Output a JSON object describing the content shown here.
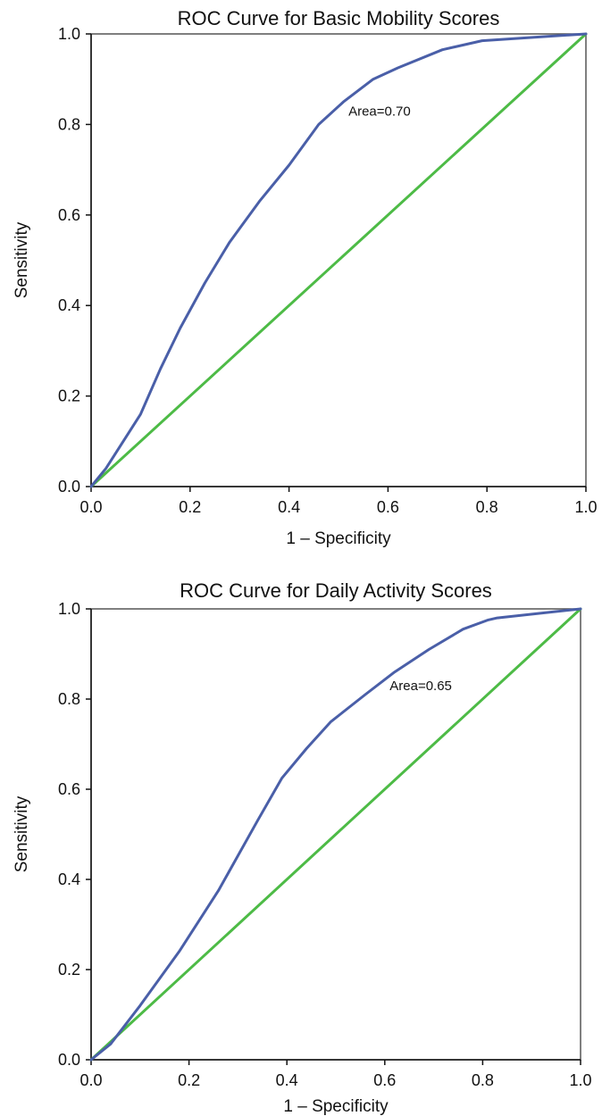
{
  "chart_data": [
    {
      "type": "line",
      "title": "ROC Curve for Basic Mobility Scores",
      "xlabel": "1 – Specificity",
      "ylabel": "Sensitivity",
      "xlim": [
        0,
        1
      ],
      "ylim": [
        0,
        1
      ],
      "xticks": [
        "0.0",
        "0.2",
        "0.4",
        "0.6",
        "0.8",
        "1.0"
      ],
      "yticks": [
        "0.0",
        "0.2",
        "0.4",
        "0.6",
        "0.8",
        "1.0"
      ],
      "grid": false,
      "annotation": {
        "text": "Area=0.70",
        "x": 0.52,
        "y": 0.82
      },
      "series": [
        {
          "color": "#4a5fa8",
          "x": [
            0,
            0.03,
            0.1,
            0.14,
            0.18,
            0.23,
            0.28,
            0.34,
            0.4,
            0.46,
            0.51,
            0.57,
            0.62,
            0.71,
            0.79,
            1.0
          ],
          "y": [
            0,
            0.04,
            0.16,
            0.26,
            0.35,
            0.45,
            0.54,
            0.63,
            0.71,
            0.8,
            0.85,
            0.9,
            0.925,
            0.965,
            0.985,
            1.0
          ]
        },
        {
          "color": "#4dbb46",
          "x": [
            0,
            1
          ],
          "y": [
            0,
            1
          ]
        }
      ]
    },
    {
      "type": "line",
      "title": "ROC Curve for Daily Activity Scores",
      "xlabel": "1 – Specificity",
      "ylabel": "Sensitivity",
      "xlim": [
        0,
        1
      ],
      "ylim": [
        0,
        1
      ],
      "xticks": [
        "0.0",
        "0.2",
        "0.4",
        "0.6",
        "0.8",
        "1.0"
      ],
      "yticks": [
        "0.0",
        "0.2",
        "0.4",
        "0.6",
        "0.8",
        "1.0"
      ],
      "grid": false,
      "annotation": {
        "text": "Area=0.65",
        "x": 0.61,
        "y": 0.82
      },
      "series": [
        {
          "color": "#4a5fa8",
          "x": [
            0,
            0.04,
            0.1,
            0.18,
            0.26,
            0.34,
            0.39,
            0.44,
            0.49,
            0.56,
            0.62,
            0.69,
            0.76,
            0.81,
            0.83,
            1.0
          ],
          "y": [
            0,
            0.035,
            0.12,
            0.24,
            0.375,
            0.53,
            0.625,
            0.69,
            0.75,
            0.81,
            0.86,
            0.91,
            0.955,
            0.975,
            0.98,
            1.0
          ]
        },
        {
          "color": "#4dbb46",
          "x": [
            0,
            1
          ],
          "y": [
            0,
            1
          ]
        }
      ]
    }
  ]
}
